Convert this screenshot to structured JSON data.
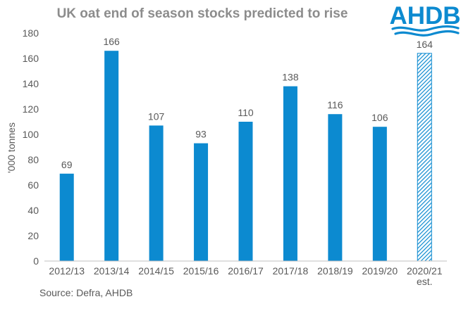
{
  "brand": {
    "logo_text": "AHDB",
    "logo_color": "#0c8ad0"
  },
  "chart_data": {
    "type": "bar",
    "title": "UK oat end of season stocks predicted to rise",
    "xlabel": "",
    "ylabel": "'000 tonnes",
    "ylim": [
      0,
      180
    ],
    "yticks": [
      0,
      20,
      40,
      60,
      80,
      100,
      120,
      140,
      160,
      180
    ],
    "grid": false,
    "categories": [
      "2012/13",
      "2013/14",
      "2014/15",
      "2015/16",
      "2016/17",
      "2017/18",
      "2018/19",
      "2019/20",
      "2020/21 est."
    ],
    "category_lines": [
      [
        "2012/13"
      ],
      [
        "2013/14"
      ],
      [
        "2014/15"
      ],
      [
        "2015/16"
      ],
      [
        "2016/17"
      ],
      [
        "2017/18"
      ],
      [
        "2018/19"
      ],
      [
        "2019/20"
      ],
      [
        "2020/21",
        "est."
      ]
    ],
    "values": [
      69,
      166,
      107,
      93,
      110,
      138,
      116,
      106,
      164
    ],
    "estimated": [
      false,
      false,
      false,
      false,
      false,
      false,
      false,
      false,
      true
    ],
    "bar_color": "#0c8ad0",
    "estimate_pattern_color": "#0c8ad0",
    "axis_color": "#bfbfbf",
    "title_color": "#8c8c8c",
    "label_color": "#595959",
    "source": "Source: Defra, AHDB"
  }
}
